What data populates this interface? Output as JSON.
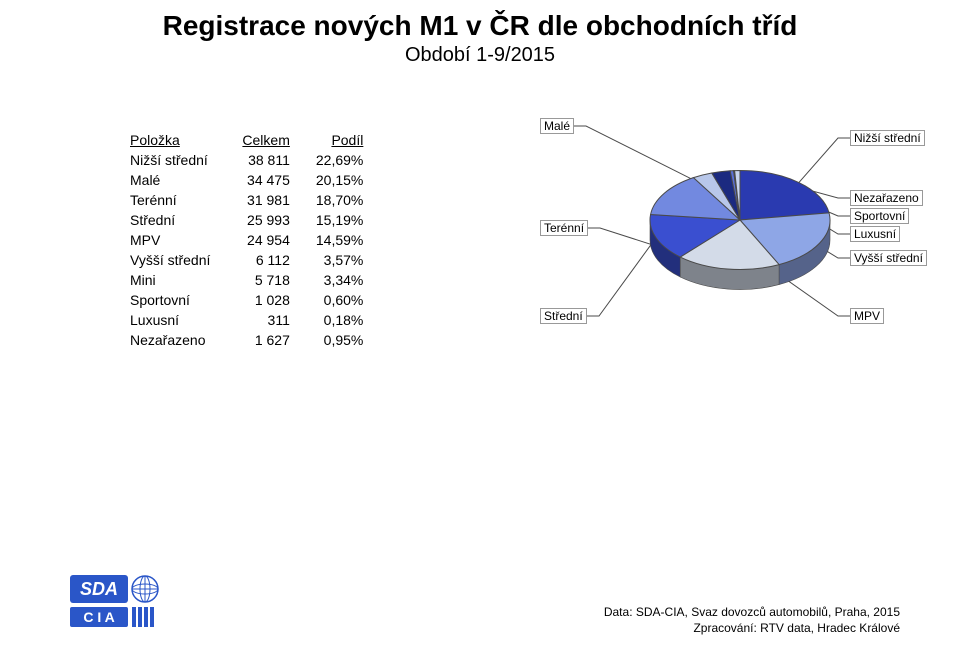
{
  "title": {
    "main": "Registrace nových M1 v ČR dle obchodních tříd",
    "sub": "Období 1-9/2015",
    "title_fontsize": 28,
    "subtitle_fontsize": 20
  },
  "table": {
    "columns": [
      "Položka",
      "Celkem",
      "Podíl"
    ],
    "label_fontsize": 14
  },
  "categories": [
    {
      "name": "Nižší střední",
      "value": 38811,
      "value_str": "38 811",
      "share": "22,69%",
      "color": "#2a3ab0"
    },
    {
      "name": "Malé",
      "value": 34475,
      "value_str": "34 475",
      "share": "20,15%",
      "color": "#8ea6e6"
    },
    {
      "name": "Terénní",
      "value": 31981,
      "value_str": "31 981",
      "share": "18,70%",
      "color": "#d3dbe8"
    },
    {
      "name": "Střední",
      "value": 25993,
      "value_str": "25 993",
      "share": "15,19%",
      "color": "#3a4fd0"
    },
    {
      "name": "MPV",
      "value": 24954,
      "value_str": "24 954",
      "share": "14,59%",
      "color": "#7289e0"
    },
    {
      "name": "Vyšší střední",
      "value": 6112,
      "value_str": "6 112",
      "share": "3,57%",
      "color": "#b8c7ea"
    },
    {
      "name": "Mini",
      "value": 5718,
      "value_str": "5 718",
      "share": "3,34%",
      "color": "#1b2a80"
    },
    {
      "name": "Sportovní",
      "value": 1028,
      "value_str": "1 028",
      "share": "0,60%",
      "color": "#5a6fd8"
    },
    {
      "name": "Luxusní",
      "value": 311,
      "value_str": "311",
      "share": "0,18%",
      "color": "#9db3ea"
    },
    {
      "name": "Nezařazeno",
      "value": 1627,
      "value_str": "1 627",
      "share": "0,95%",
      "color": "#c8d4ef"
    }
  ],
  "pie": {
    "radius": 90,
    "depth": 20,
    "tilt": 0.55,
    "stroke": "#4a4a4a",
    "stroke_width": 1,
    "label_fontsize": 12,
    "label_border": "#999999",
    "label_bg": "#ffffff",
    "background": "#ffffff"
  },
  "footer": {
    "line1": "Data: SDA-CIA, Svaz dovozců automobilů, Praha, 2015",
    "line2": "Zpracování: RTV data, Hradec Králové",
    "fontsize": 12
  },
  "logo": {
    "sda": {
      "text": "SDA",
      "bg": "#2a56c8",
      "text_color": "#ffffff"
    },
    "cia": {
      "text": "C I A",
      "bg": "#2a56c8",
      "text_color": "#ffffff",
      "subbar_color": "#2a56c8"
    }
  }
}
